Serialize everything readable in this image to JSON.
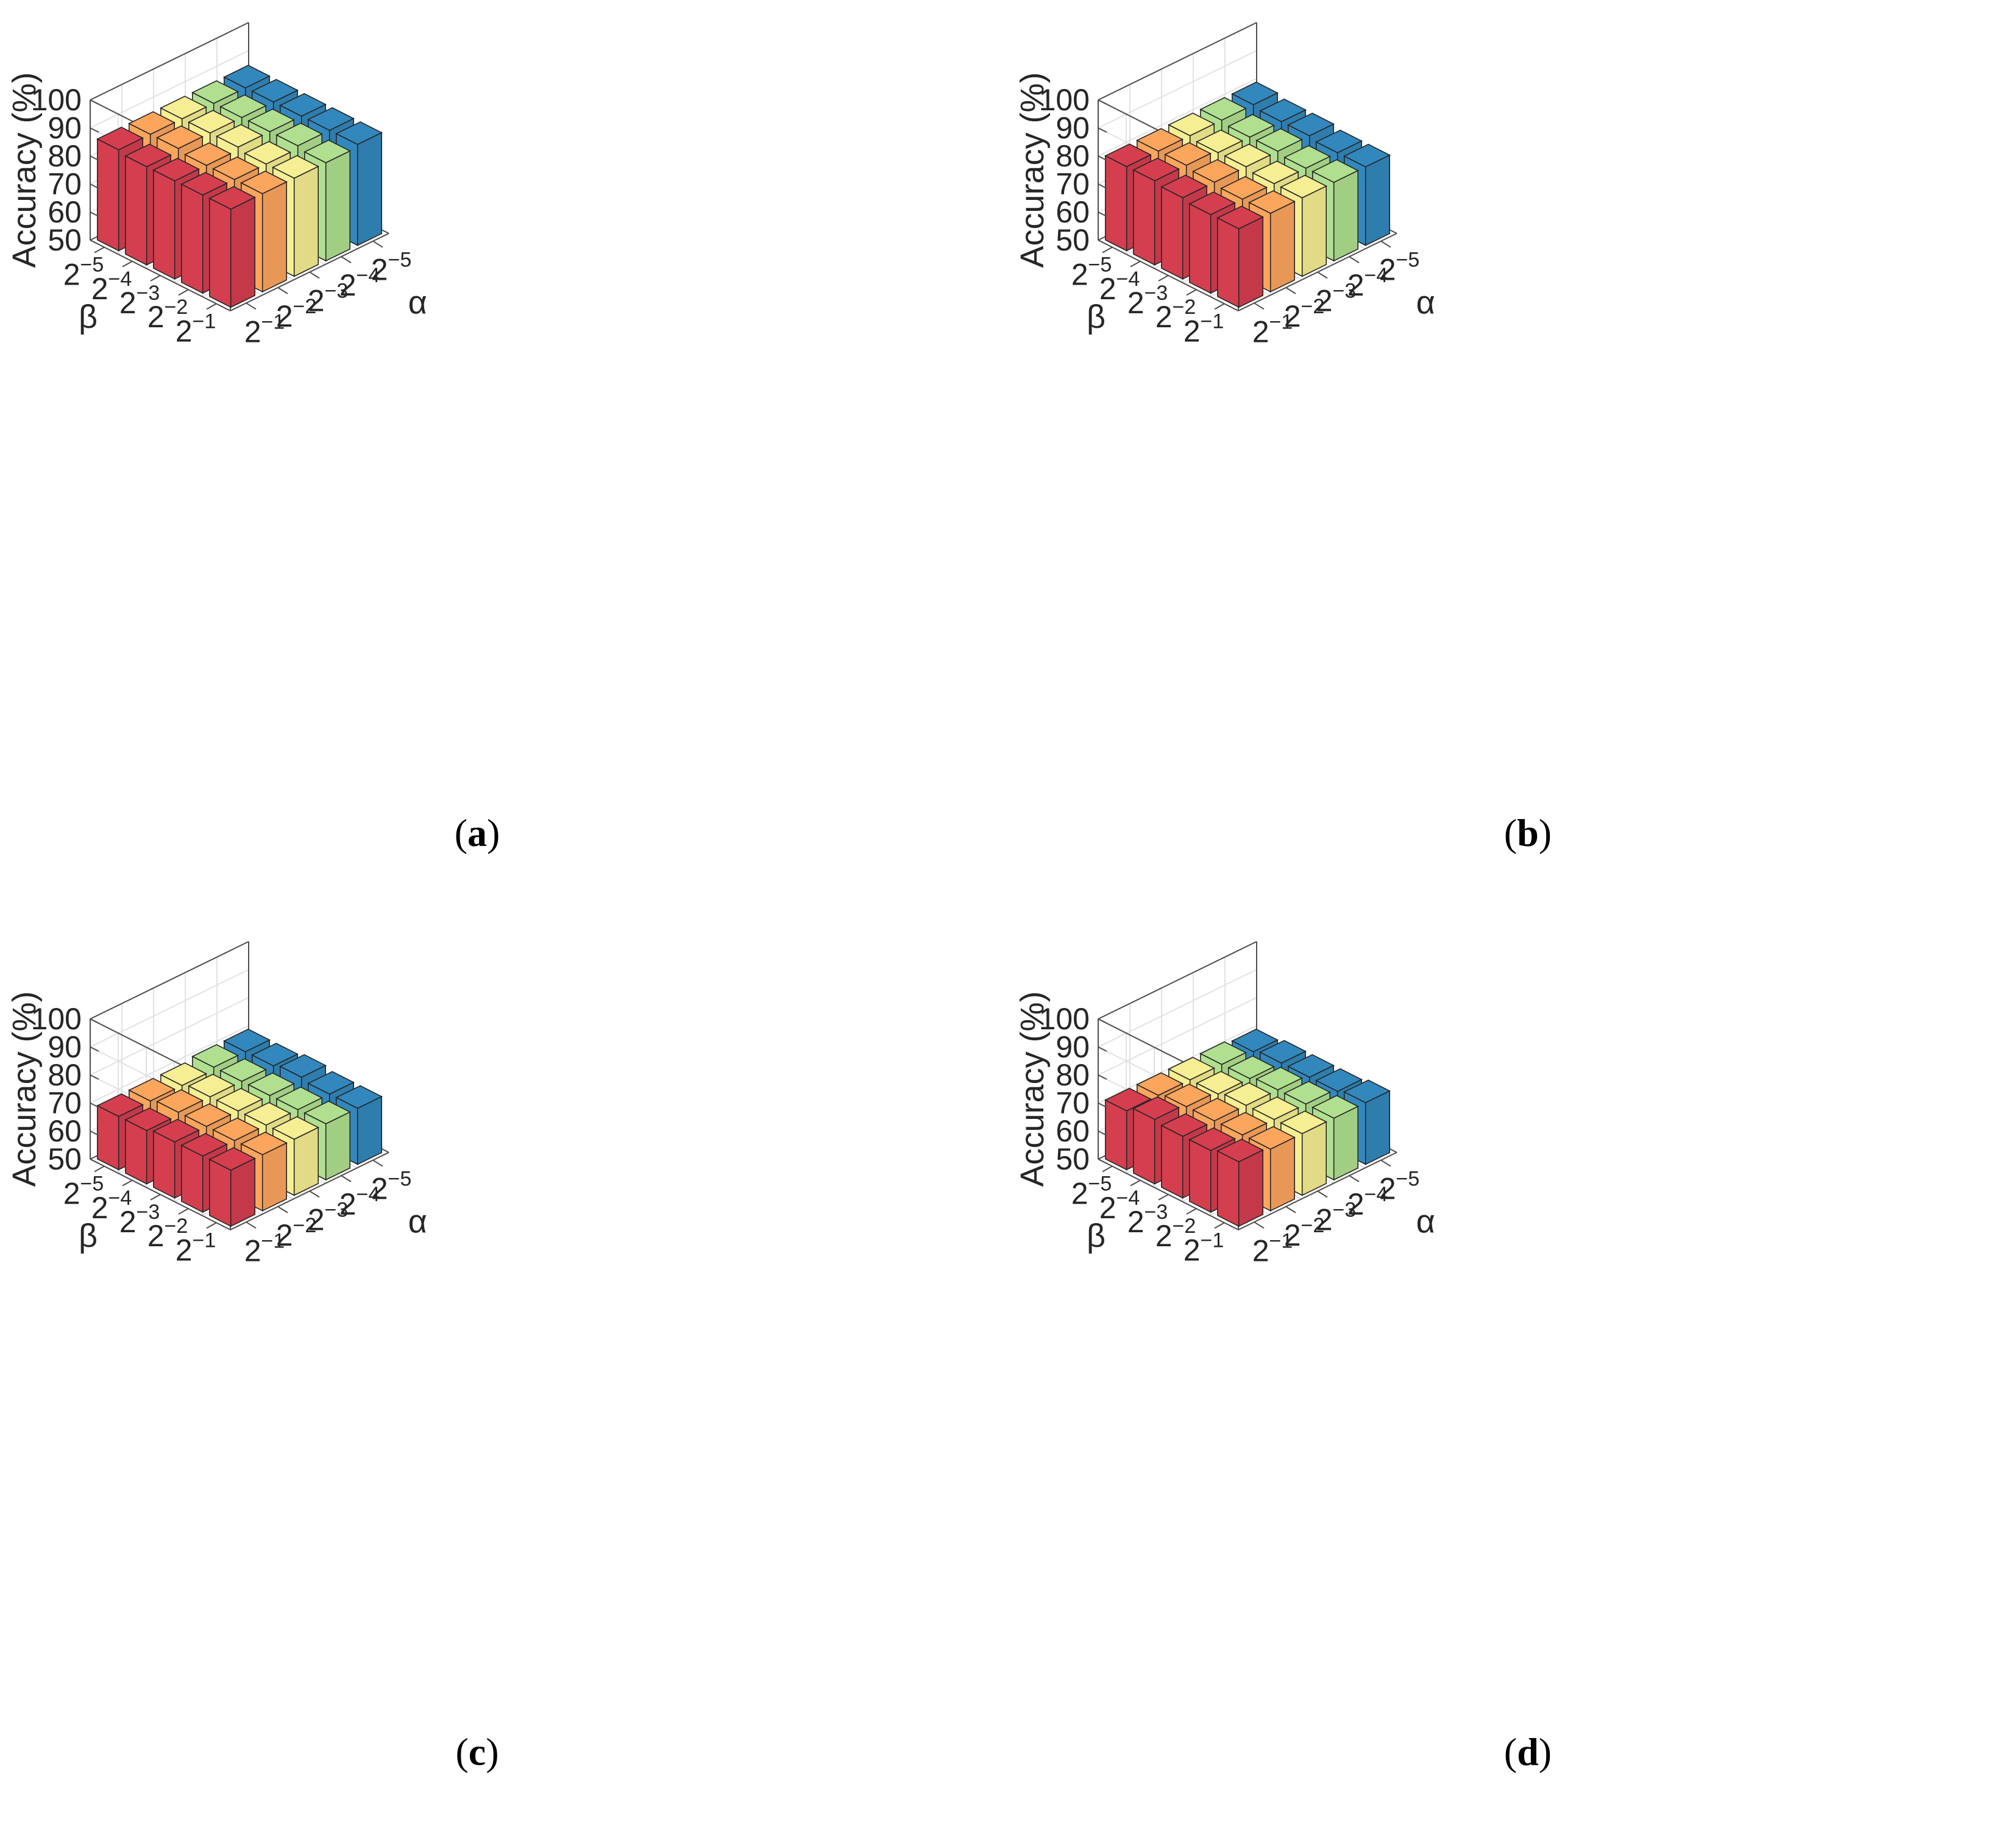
{
  "chart_data": [
    {
      "panel": "a",
      "type": "bar3d",
      "caption": "a",
      "zlabel": "Accuracy (%)",
      "xlabel": "α",
      "ylabel": "β",
      "zlim": [
        50,
        100
      ],
      "zticks": [
        "50",
        "60",
        "70",
        "80",
        "90",
        "100"
      ],
      "alpha_ticks": [
        [
          "2",
          "−1"
        ],
        [
          "2",
          "−2"
        ],
        [
          "2",
          "−3"
        ],
        [
          "2",
          "−4"
        ],
        [
          "2",
          "−5"
        ]
      ],
      "beta_ticks": [
        [
          "2",
          "−1"
        ],
        [
          "2",
          "−2"
        ],
        [
          "2",
          "−3"
        ],
        [
          "2",
          "−4"
        ],
        [
          "2",
          "−5"
        ]
      ],
      "values": [
        [
          85,
          85,
          85,
          85,
          86
        ],
        [
          85,
          85,
          85,
          86,
          86
        ],
        [
          85,
          85,
          86,
          86,
          86
        ],
        [
          85,
          86,
          86,
          86,
          86
        ],
        [
          86,
          86,
          86,
          86,
          86
        ]
      ]
    },
    {
      "panel": "b",
      "type": "bar3d",
      "caption": "b",
      "zlabel": "Accuracy (%)",
      "xlabel": "α",
      "ylabel": "β",
      "zlim": [
        50,
        100
      ],
      "zticks": [
        "50",
        "60",
        "70",
        "80",
        "90",
        "100"
      ],
      "alpha_ticks": [
        [
          "2",
          "−1"
        ],
        [
          "2",
          "−2"
        ],
        [
          "2",
          "−3"
        ],
        [
          "2",
          "−4"
        ],
        [
          "2",
          "−5"
        ]
      ],
      "beta_ticks": [
        [
          "2",
          "−1"
        ],
        [
          "2",
          "−2"
        ],
        [
          "2",
          "−3"
        ],
        [
          "2",
          "−4"
        ],
        [
          "2",
          "−5"
        ]
      ],
      "values": [
        [
          78,
          78,
          79,
          80,
          80
        ],
        [
          78,
          78,
          79,
          80,
          80
        ],
        [
          78,
          78,
          79,
          79,
          80
        ],
        [
          78,
          78,
          79,
          79,
          80
        ],
        [
          78,
          78,
          79,
          79,
          80
        ]
      ]
    },
    {
      "panel": "c",
      "type": "bar3d",
      "caption": "c",
      "zlabel": "Accuracy (%)",
      "xlabel": "α",
      "ylabel": "β",
      "zlim": [
        50,
        100
      ],
      "zticks": [
        "50",
        "60",
        "70",
        "80",
        "90",
        "100"
      ],
      "alpha_ticks": [
        [
          "2",
          "−1"
        ],
        [
          "2",
          "−2"
        ],
        [
          "2",
          "−3"
        ],
        [
          "2",
          "−4"
        ],
        [
          "2",
          "−5"
        ]
      ],
      "beta_ticks": [
        [
          "2",
          "−1"
        ],
        [
          "2",
          "−2"
        ],
        [
          "2",
          "−3"
        ],
        [
          "2",
          "−4"
        ],
        [
          "2",
          "−5"
        ]
      ],
      "values": [
        [
          70,
          70,
          70,
          69,
          69
        ],
        [
          70,
          70,
          70,
          70,
          69
        ],
        [
          70,
          70,
          70,
          70,
          69
        ],
        [
          70,
          70,
          70,
          70,
          70
        ],
        [
          70,
          70,
          71,
          70,
          70
        ]
      ]
    },
    {
      "panel": "d",
      "type": "bar3d",
      "caption": "d",
      "zlabel": "Accuracy (%)",
      "xlabel": "α",
      "ylabel": "β",
      "zlim": [
        50,
        100
      ],
      "zticks": [
        "50",
        "60",
        "70",
        "80",
        "90",
        "100"
      ],
      "alpha_ticks": [
        [
          "2",
          "−1"
        ],
        [
          "2",
          "−2"
        ],
        [
          "2",
          "−3"
        ],
        [
          "2",
          "−4"
        ],
        [
          "2",
          "−5"
        ]
      ],
      "beta_ticks": [
        [
          "2",
          "−1"
        ],
        [
          "2",
          "−2"
        ],
        [
          "2",
          "−3"
        ],
        [
          "2",
          "−4"
        ],
        [
          "2",
          "−5"
        ]
      ],
      "values": [
        [
          73,
          72,
          72,
          73,
          71
        ],
        [
          72,
          72,
          72,
          72,
          71
        ],
        [
          72,
          72,
          72,
          71,
          71
        ],
        [
          72,
          72,
          72,
          71,
          71
        ],
        [
          72,
          71,
          71,
          71,
          70
        ]
      ]
    }
  ],
  "colors": {
    "alpha_series": [
      "#d53e4f",
      "#fca55d",
      "#f6ee92",
      "#b0e08f",
      "#3288bd"
    ],
    "edge": "#262626",
    "box": "#4d4d4d",
    "grid": "#e2e2e2"
  }
}
